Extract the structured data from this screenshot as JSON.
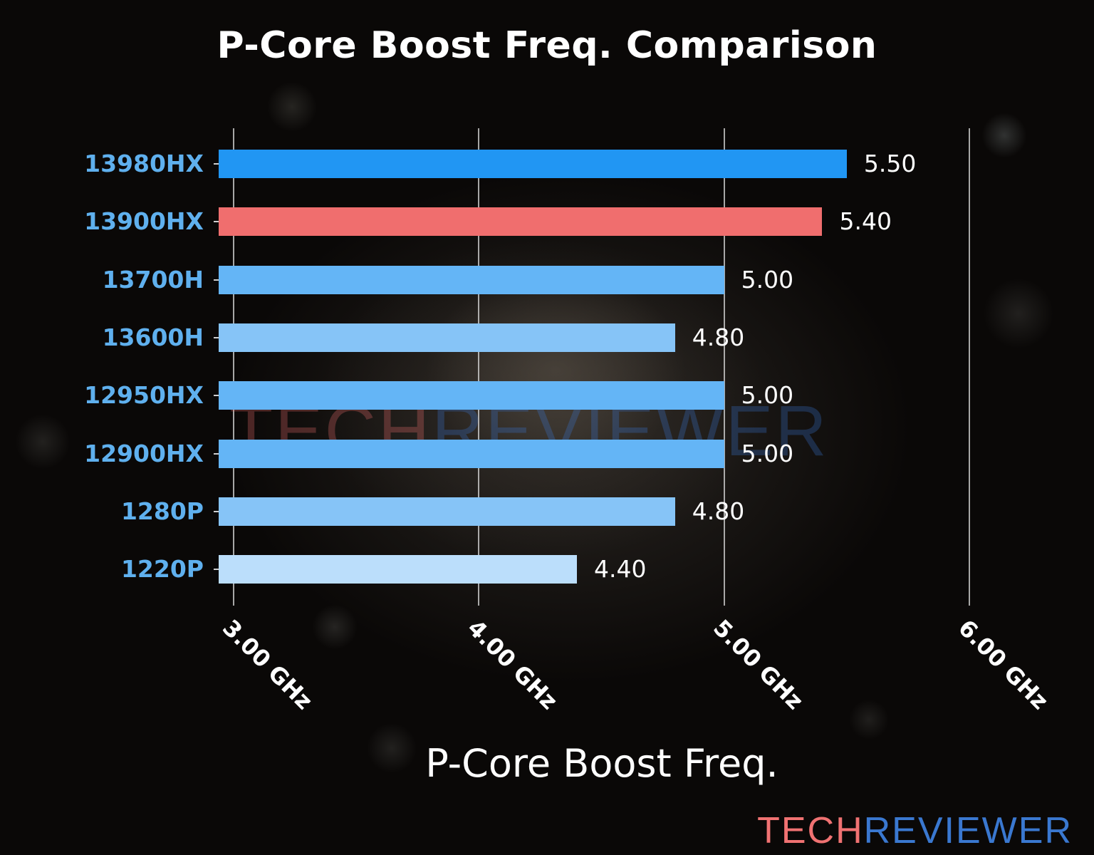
{
  "title": "P-Core Boost Freq. Comparison",
  "watermark": {
    "part1": "TECH",
    "part2": "REVIEWER"
  },
  "brand": {
    "part1": "TECH",
    "part2": "REVIEWER",
    "color1": "#f07272",
    "color2": "#3a78d0"
  },
  "x_axis": {
    "title": "P-Core Boost Freq.",
    "ticks": [
      "3.00 GHz",
      "4.00 GHz",
      "5.00 GHz",
      "6.00 GHz"
    ]
  },
  "chart_data": {
    "type": "bar",
    "orientation": "horizontal",
    "title": "P-Core Boost Freq. Comparison",
    "xlabel": "P-Core Boost Freq.",
    "ylabel": "",
    "categories": [
      "13980HX",
      "13900HX",
      "13700H",
      "13600H",
      "12950HX",
      "12900HX",
      "1280P",
      "1220P"
    ],
    "values": [
      5.5,
      5.4,
      5.0,
      4.8,
      5.0,
      5.0,
      4.8,
      4.4
    ],
    "value_labels": [
      "5.50",
      "5.40",
      "5.00",
      "4.80",
      "5.00",
      "5.00",
      "4.80",
      "4.40"
    ],
    "colors": [
      "#2196f3",
      "#f06e6e",
      "#64b5f6",
      "#86c4f7",
      "#64b5f6",
      "#64b5f6",
      "#86c4f7",
      "#bbdefb"
    ],
    "highlight": "13900HX",
    "xlim": [
      2.94,
      6.0
    ],
    "x_ticks": [
      3.0,
      4.0,
      5.0,
      6.0
    ],
    "x_tick_labels": [
      "3.00 GHz",
      "4.00 GHz",
      "5.00 GHz",
      "6.00 GHz"
    ],
    "unit": "GHz",
    "grid": "vertical",
    "legend": "none"
  }
}
